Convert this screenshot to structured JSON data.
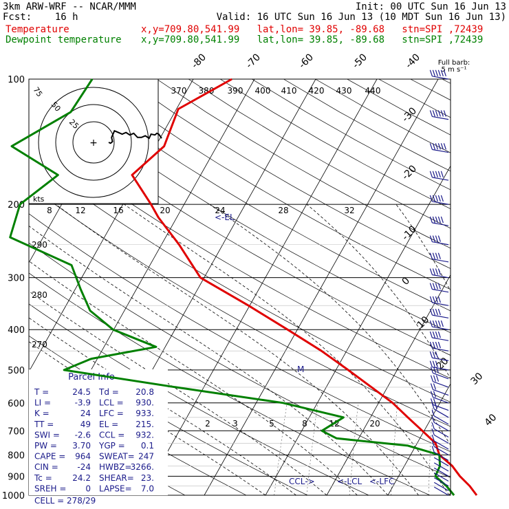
{
  "header": {
    "line1_left": "3km ARW-WRF -- NCAR/MMM",
    "line1_right": "Init: 00 UTC Sun 16 Jun 13",
    "line2_left": "Fcst:    16 h",
    "line2_right": "Valid: 16 UTC Sun 16 Jun 13 (10 MDT Sun 16 Jun 13)",
    "temp_label": "Temperature",
    "temp_info": "x,y=709.80,541.99   lat,lon= 39.85, -89.68   stn=SPI ,72439",
    "dew_label": "Dewpoint temperature",
    "dew_info": "x,y=709.80,541.99   lat,lon= 39.85, -89.68   stn=SPI ,72439"
  },
  "colors": {
    "temperature": "#e00000",
    "dewpoint": "#008000",
    "panel_text": "#1a1a8a",
    "barbs": "#1a1a8a"
  },
  "chart_data": {
    "type": "skew-t",
    "pressure_levels": [
      100,
      200,
      300,
      400,
      500,
      600,
      700,
      800,
      900,
      1000
    ],
    "temp_ticks_top": [
      "-80",
      "-70",
      "-60",
      "-50",
      "-40"
    ],
    "temp_ticks_right": [
      "-30",
      "-20",
      "-10",
      "0",
      "10",
      "20",
      "30",
      "40"
    ],
    "theta_labels_top": [
      "370",
      "380",
      "390",
      "400",
      "410",
      "420",
      "430",
      "440"
    ],
    "theta_labels_left": [
      "290",
      "280",
      "270"
    ],
    "theta_e_labels": [
      "8",
      "12",
      "16",
      "20",
      "24",
      "28",
      "32"
    ],
    "mixing_ratio_labels": [
      "2",
      "3",
      "5",
      "8",
      "12",
      "20"
    ],
    "hodograph": {
      "units_label": "kts",
      "ring_labels": [
        "75",
        "50",
        "25"
      ]
    },
    "barb_legend": "Full barb:\n5 m s⁻¹",
    "markers": {
      "el": "<-EL",
      "m": "M",
      "ccl": "CCL->",
      "lcl": "<-LCL",
      "lfc": "<-LFC"
    },
    "temperature": [
      {
        "p": 100,
        "t": -53.7
      },
      {
        "p": 118,
        "t": -59.7
      },
      {
        "p": 145,
        "t": -58.6
      },
      {
        "p": 170,
        "t": -61.2
      },
      {
        "p": 200,
        "t": -55.4
      },
      {
        "p": 215,
        "t": -53.0
      },
      {
        "p": 250,
        "t": -47.1
      },
      {
        "p": 300,
        "t": -40.6
      },
      {
        "p": 350,
        "t": -30.2
      },
      {
        "p": 400,
        "t": -21.6
      },
      {
        "p": 450,
        "t": -14.1
      },
      {
        "p": 500,
        "t": -8.0
      },
      {
        "p": 550,
        "t": -2.6
      },
      {
        "p": 600,
        "t": 2.3
      },
      {
        "p": 650,
        "t": 6.1
      },
      {
        "p": 700,
        "t": 9.7
      },
      {
        "p": 750,
        "t": 13.0
      },
      {
        "p": 800,
        "t": 14.7
      },
      {
        "p": 850,
        "t": 17.8
      },
      {
        "p": 900,
        "t": 20.0
      },
      {
        "p": 950,
        "t": 22.5
      },
      {
        "p": 1000,
        "t": 24.5
      }
    ],
    "dewpoint": [
      {
        "p": 100,
        "t": -76.5
      },
      {
        "p": 120,
        "t": -77.0
      },
      {
        "p": 145,
        "t": -83.5
      },
      {
        "p": 170,
        "t": -73.3
      },
      {
        "p": 200,
        "t": -76.8
      },
      {
        "p": 240,
        "t": -75.4
      },
      {
        "p": 280,
        "t": -62.8
      },
      {
        "p": 320,
        "t": -59.1
      },
      {
        "p": 360,
        "t": -55.6
      },
      {
        "p": 400,
        "t": -50.1
      },
      {
        "p": 440,
        "t": -41.5
      },
      {
        "p": 470,
        "t": -51.0
      },
      {
        "p": 500,
        "t": -54.4
      },
      {
        "p": 550,
        "t": -34.6
      },
      {
        "p": 600,
        "t": -15.6
      },
      {
        "p": 650,
        "t": -4.4
      },
      {
        "p": 700,
        "t": -6.7
      },
      {
        "p": 730,
        "t": -3.6
      },
      {
        "p": 760,
        "t": 8.7
      },
      {
        "p": 800,
        "t": 14.7
      },
      {
        "p": 850,
        "t": 15.8
      },
      {
        "p": 900,
        "t": 16.0
      },
      {
        "p": 950,
        "t": 18.7
      },
      {
        "p": 1000,
        "t": 20.8
      }
    ],
    "hodograph_trace": [
      [
        0,
        0
      ],
      [
        2,
        1
      ],
      [
        4,
        -1
      ],
      [
        3,
        -6
      ],
      [
        6,
        -14
      ],
      [
        10,
        -12
      ],
      [
        14,
        -10
      ],
      [
        18,
        -12
      ],
      [
        22,
        -9
      ],
      [
        26,
        -11
      ],
      [
        30,
        -6
      ],
      [
        34,
        -6
      ],
      [
        38,
        -8
      ],
      [
        42,
        -5
      ],
      [
        44,
        -10
      ],
      [
        48,
        -9
      ],
      [
        50,
        -11
      ],
      [
        52,
        -10
      ],
      [
        55,
        -5
      ]
    ],
    "wind_barbs": [
      {
        "p": 100,
        "speed": 34,
        "dir": 280
      },
      {
        "p": 125,
        "speed": 31,
        "dir": 280
      },
      {
        "p": 150,
        "speed": 30,
        "dir": 280
      },
      {
        "p": 175,
        "speed": 28,
        "dir": 280
      },
      {
        "p": 200,
        "speed": 29,
        "dir": 280
      },
      {
        "p": 225,
        "speed": 27,
        "dir": 280
      },
      {
        "p": 250,
        "speed": 24,
        "dir": 280
      },
      {
        "p": 275,
        "speed": 22,
        "dir": 280
      },
      {
        "p": 300,
        "speed": 22,
        "dir": 280
      },
      {
        "p": 325,
        "speed": 24,
        "dir": 280
      },
      {
        "p": 350,
        "speed": 24,
        "dir": 280
      },
      {
        "p": 375,
        "speed": 24,
        "dir": 280
      },
      {
        "p": 400,
        "speed": 26,
        "dir": 280
      },
      {
        "p": 425,
        "speed": 24,
        "dir": 280
      },
      {
        "p": 450,
        "speed": 22,
        "dir": 280
      },
      {
        "p": 475,
        "speed": 19,
        "dir": 280
      },
      {
        "p": 500,
        "speed": 18,
        "dir": 280
      },
      {
        "p": 525,
        "speed": 17,
        "dir": 290
      },
      {
        "p": 550,
        "speed": 15,
        "dir": 290
      },
      {
        "p": 575,
        "speed": 14,
        "dir": 290
      },
      {
        "p": 600,
        "speed": 14,
        "dir": 290
      },
      {
        "p": 625,
        "speed": 12,
        "dir": 290
      },
      {
        "p": 650,
        "speed": 11,
        "dir": 300
      },
      {
        "p": 675,
        "speed": 9,
        "dir": 300
      },
      {
        "p": 700,
        "speed": 8,
        "dir": 300
      },
      {
        "p": 725,
        "speed": 8,
        "dir": 300
      },
      {
        "p": 750,
        "speed": 7,
        "dir": 300
      },
      {
        "p": 775,
        "speed": 6,
        "dir": 300
      },
      {
        "p": 800,
        "speed": 6,
        "dir": 300
      },
      {
        "p": 825,
        "speed": 5,
        "dir": 300
      },
      {
        "p": 850,
        "speed": 4,
        "dir": 300
      },
      {
        "p": 875,
        "speed": 4,
        "dir": 300
      },
      {
        "p": 900,
        "speed": 3,
        "dir": 300
      },
      {
        "p": 925,
        "speed": 3,
        "dir": 300
      },
      {
        "p": 950,
        "speed": 2,
        "dir": 300
      },
      {
        "p": 975,
        "speed": 2,
        "dir": 300
      },
      {
        "p": 1000,
        "speed": 2,
        "dir": 300
      }
    ],
    "parcel_info": {
      "title": "Parcel Info",
      "rows": [
        [
          "T  =",
          "24.5",
          "Td =",
          "20.8"
        ],
        [
          "LI =",
          "-3.9",
          "LCL =",
          "930."
        ],
        [
          "K  =",
          "24",
          "LFC =",
          "933."
        ],
        [
          "TT =",
          "49",
          "EL  =",
          "215."
        ],
        [
          "SWI =",
          "-2.6",
          "CCL =",
          "932."
        ],
        [
          "PW =",
          "3.70",
          "YGP =",
          "0.1"
        ],
        [
          "CAPE =",
          "964",
          "SWEAT=",
          "247"
        ],
        [
          "CIN  =",
          "-24",
          "HWBZ=",
          "3266."
        ],
        [
          "Tc   =",
          "24.2",
          "SHEAR=",
          "23."
        ],
        [
          "SREH =",
          "0",
          "LAPSE=",
          "7.0"
        ]
      ],
      "cell": "CELL = 278/29"
    }
  }
}
